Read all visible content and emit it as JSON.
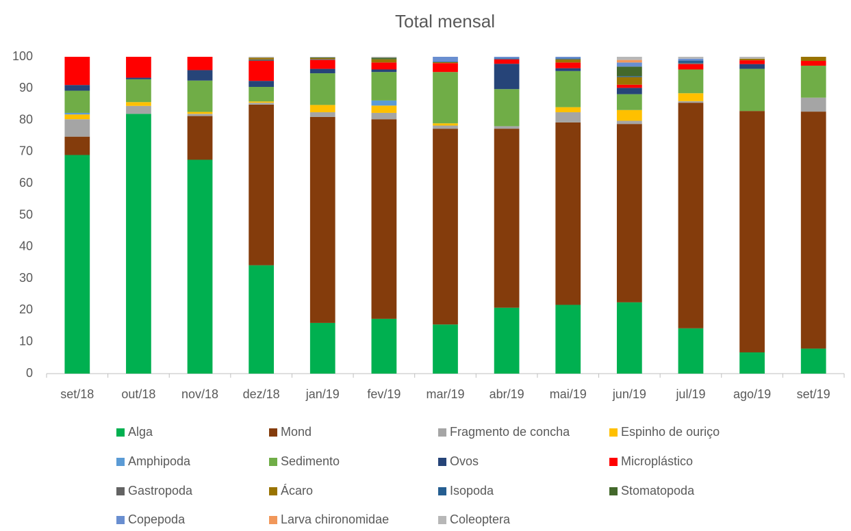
{
  "chart_data": {
    "type": "stacked_bar",
    "title": "Total mensal",
    "categories": [
      "set/18",
      "out/18",
      "nov/18",
      "dez/18",
      "jan/19",
      "fev/19",
      "mar/19",
      "abr/19",
      "mai/19",
      "jun/19",
      "jul/19",
      "ago/19",
      "set/19"
    ],
    "series": [
      {
        "name": "Alga",
        "color": "#00b050",
        "values": [
          69,
          82,
          67.5,
          34.2,
          16,
          17.3,
          15.5,
          20.8,
          21.7,
          22.5,
          14.3,
          6.7,
          7.9
        ]
      },
      {
        "name": "Mond",
        "color": "#843c0c",
        "values": [
          5.8,
          0,
          13.8,
          50.7,
          65,
          63,
          61.8,
          56.5,
          57.6,
          56.3,
          71.2,
          76.2,
          74.8
        ]
      },
      {
        "name": "Fragmento de concha",
        "color": "#a5a5a5",
        "values": [
          5.5,
          2.5,
          0.7,
          0.6,
          1.5,
          2,
          1,
          0.8,
          3.2,
          1,
          0.5,
          0,
          4.4
        ]
      },
      {
        "name": "Espinho de ouriço",
        "color": "#ffc000",
        "values": [
          1.5,
          1.2,
          0.6,
          0.4,
          2.3,
          2.3,
          0.7,
          0,
          1.6,
          3.4,
          2.5,
          0,
          0
        ]
      },
      {
        "name": "Amphipoda",
        "color": "#5b9bd5",
        "values": [
          0.5,
          0,
          0,
          0,
          0,
          1.6,
          0,
          0,
          0,
          0,
          0,
          0,
          0
        ]
      },
      {
        "name": "Sedimento",
        "color": "#70ad47",
        "values": [
          7,
          7.2,
          9.9,
          4.6,
          10,
          9,
          16.2,
          11.7,
          11.4,
          5,
          7.5,
          13.3,
          10.1
        ]
      },
      {
        "name": "Ovos",
        "color": "#264478",
        "values": [
          1.8,
          0.5,
          3.3,
          1.9,
          1.4,
          0.8,
          0,
          8,
          0.9,
          2,
          0,
          1.5,
          0
        ]
      },
      {
        "name": "Microplástico",
        "color": "#ff0000",
        "values": [
          8.9,
          6.6,
          4.2,
          6.3,
          2.8,
          2.2,
          2.8,
          1.4,
          1.8,
          1,
          1.7,
          1.2,
          1.5
        ]
      },
      {
        "name": "Gastropoda",
        "color": "#636363",
        "values": [
          0,
          0,
          0,
          0.5,
          0.3,
          0,
          0,
          0,
          0,
          0,
          0.3,
          0,
          0
        ]
      },
      {
        "name": "Ácaro",
        "color": "#997300",
        "values": [
          0,
          0,
          0,
          0.5,
          0.3,
          1,
          0.3,
          0,
          1,
          2.4,
          0,
          0.5,
          1.3
        ]
      },
      {
        "name": "Isopoda",
        "color": "#255e91",
        "values": [
          0,
          0,
          0,
          0,
          0,
          0,
          0.2,
          0.3,
          0.3,
          0.3,
          0.8,
          0,
          0
        ]
      },
      {
        "name": "Stomatopoda",
        "color": "#43682b",
        "values": [
          0,
          0,
          0,
          0,
          0.2,
          0.5,
          0,
          0,
          0,
          3,
          0,
          0,
          0
        ]
      },
      {
        "name": "Copepoda",
        "color": "#698ed0",
        "values": [
          0,
          0,
          0,
          0,
          0,
          0,
          1.5,
          0.5,
          0.5,
          1.3,
          0.6,
          0,
          0
        ]
      },
      {
        "name": "Larva chironomidae",
        "color": "#f1975a",
        "values": [
          0,
          0,
          0,
          0,
          0,
          0,
          0,
          0,
          0,
          0.8,
          0,
          0,
          0
        ]
      },
      {
        "name": "Coleoptera",
        "color": "#b7b7b7",
        "values": [
          0,
          0,
          0,
          0.3,
          0.2,
          0.3,
          0,
          0,
          0,
          1,
          0.6,
          0.6,
          0
        ]
      }
    ],
    "ylim": [
      0,
      100
    ],
    "yticks": [
      0,
      10,
      20,
      30,
      40,
      50,
      60,
      70,
      80,
      90,
      100
    ],
    "grid": false,
    "legend": "bottom"
  }
}
